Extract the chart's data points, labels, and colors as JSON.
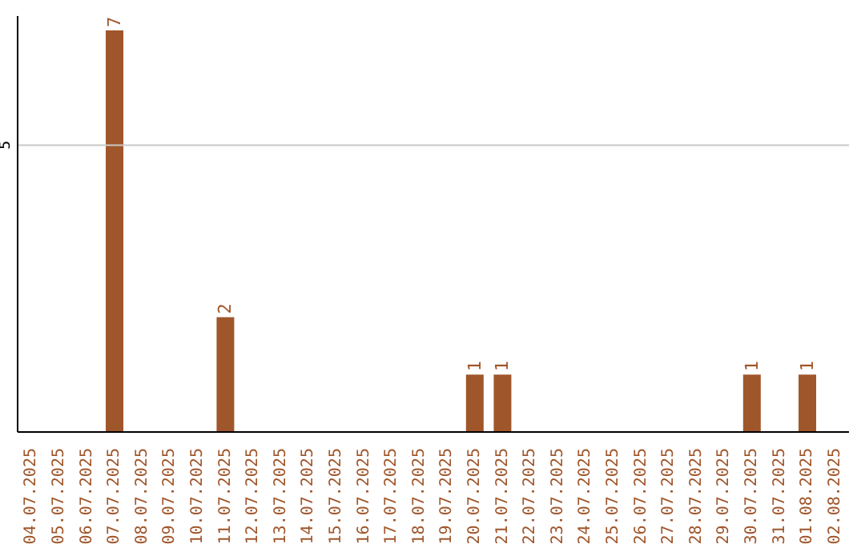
{
  "chart_data": {
    "type": "bar",
    "categories": [
      "04.07.2025",
      "05.07.2025",
      "06.07.2025",
      "07.07.2025",
      "08.07.2025",
      "09.07.2025",
      "10.07.2025",
      "11.07.2025",
      "12.07.2025",
      "13.07.2025",
      "14.07.2025",
      "15.07.2025",
      "16.07.2025",
      "17.07.2025",
      "18.07.2025",
      "19.07.2025",
      "20.07.2025",
      "21.07.2025",
      "22.07.2025",
      "23.07.2025",
      "24.07.2025",
      "25.07.2025",
      "26.07.2025",
      "27.07.2025",
      "28.07.2025",
      "29.07.2025",
      "30.07.2025",
      "31.07.2025",
      "01.08.2025",
      "02.08.2025"
    ],
    "values": [
      null,
      null,
      null,
      7,
      null,
      null,
      null,
      2,
      null,
      null,
      null,
      null,
      null,
      null,
      null,
      null,
      1,
      1,
      null,
      null,
      null,
      null,
      null,
      null,
      null,
      null,
      1,
      null,
      1,
      null
    ],
    "color": "#a0562b",
    "ylim": [
      0,
      7.25
    ],
    "yticks": [
      5
    ],
    "grid": "y",
    "data_labels": true
  }
}
